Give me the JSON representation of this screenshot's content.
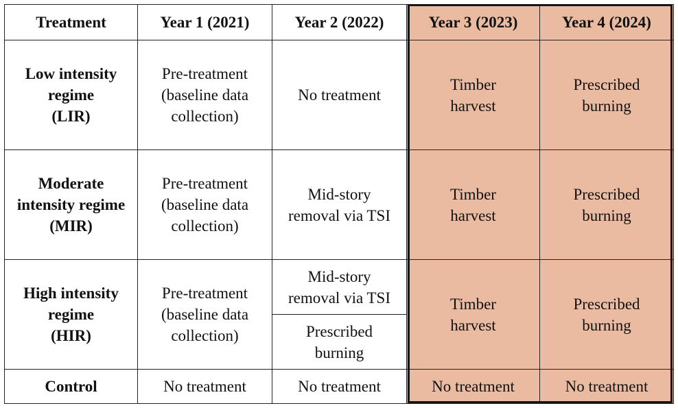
{
  "headers": {
    "treatment": "Treatment",
    "year1": "Year 1 (2021)",
    "year2": "Year 2 (2022)",
    "year3": "Year 3 (2023)",
    "year4": "Year 4 (2024)"
  },
  "rows": {
    "lir": {
      "name": [
        "Low intensity",
        "regime",
        "(LIR)"
      ],
      "year1": [
        "Pre-treatment",
        "(baseline data",
        "collection)"
      ],
      "year2": [
        "No treatment"
      ],
      "year3": [
        "Timber",
        "harvest"
      ],
      "year4": [
        "Prescribed",
        "burning"
      ]
    },
    "mir": {
      "name": [
        "Moderate",
        "intensity regime",
        "(MIR)"
      ],
      "year1": [
        "Pre-treatment",
        "(baseline data",
        "collection)"
      ],
      "year2": [
        "Mid-story",
        "removal via TSI"
      ],
      "year3": [
        "Timber",
        "harvest"
      ],
      "year4": [
        "Prescribed",
        "burning"
      ]
    },
    "hir": {
      "name": [
        "High intensity",
        "regime",
        "(HIR)"
      ],
      "year1": [
        "Pre-treatment",
        "(baseline data",
        "collection)"
      ],
      "year2a": [
        "Mid-story",
        "removal via TSI"
      ],
      "year2b": [
        "Prescribed",
        "burning"
      ],
      "year3": [
        "Timber",
        "harvest"
      ],
      "year4": [
        "Prescribed",
        "burning"
      ]
    },
    "control": {
      "name": "Control",
      "year1": "No treatment",
      "year2": "No treatment",
      "year3": "No treatment",
      "year4": "No treatment"
    }
  },
  "colors": {
    "highlight_fill": "#ebbba1",
    "border": "#222222"
  }
}
